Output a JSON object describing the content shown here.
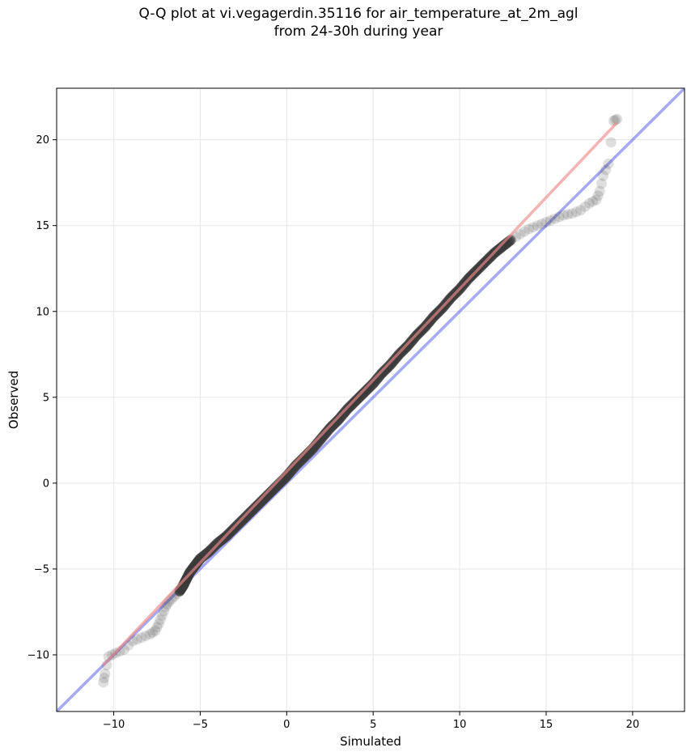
{
  "chart_data": {
    "type": "scatter",
    "title": "Q-Q plot at vi.vegagerdin.35116 for air_temperature_at_2m_agl\nfrom 24-30h during year",
    "xlabel": "Simulated",
    "ylabel": "Observed",
    "xlim": [
      -13.3,
      23.0
    ],
    "ylim": [
      -13.3,
      23.0
    ],
    "xticks": [
      -10,
      -5,
      0,
      5,
      10,
      15,
      20
    ],
    "yticks": [
      -10,
      -5,
      0,
      5,
      10,
      15,
      20
    ],
    "xtick_labels": [
      "−10",
      "−5",
      "0",
      "5",
      "10",
      "15",
      "20"
    ],
    "ytick_labels": [
      "−10",
      "−5",
      "0",
      "5",
      "10",
      "15",
      "20"
    ],
    "grid": true,
    "identity_line_color": "#5b62ee",
    "fit_line_color": "#f08a8a",
    "fit_line": {
      "x": [
        -10.6,
        19.1
      ],
      "y": [
        -10.6,
        21.0
      ]
    },
    "point_color": "#3a3a3a",
    "points": [
      {
        "x": -10.6,
        "y": -11.6
      },
      {
        "x": -10.5,
        "y": -11.1
      },
      {
        "x": -10.3,
        "y": -10.1
      },
      {
        "x": -9.9,
        "y": -9.9
      },
      {
        "x": -9.4,
        "y": -9.7
      },
      {
        "x": -8.9,
        "y": -9.2
      },
      {
        "x": -8.4,
        "y": -9.0
      },
      {
        "x": -7.9,
        "y": -8.8
      },
      {
        "x": -7.6,
        "y": -8.6
      },
      {
        "x": -7.4,
        "y": -8.2
      },
      {
        "x": -7.2,
        "y": -7.7
      },
      {
        "x": -7.0,
        "y": -7.2
      },
      {
        "x": -6.8,
        "y": -6.9
      },
      {
        "x": -6.5,
        "y": -6.6
      },
      {
        "x": -6.2,
        "y": -6.3
      },
      {
        "x": -6.0,
        "y": -6.0
      },
      {
        "x": -5.8,
        "y": -5.6
      },
      {
        "x": -5.6,
        "y": -5.2
      },
      {
        "x": -5.3,
        "y": -4.8
      },
      {
        "x": -5.0,
        "y": -4.4
      },
      {
        "x": -4.5,
        "y": -4.0
      },
      {
        "x": -4.0,
        "y": -3.5
      },
      {
        "x": -3.5,
        "y": -3.1
      },
      {
        "x": -3.0,
        "y": -2.6
      },
      {
        "x": -2.5,
        "y": -2.1
      },
      {
        "x": -2.0,
        "y": -1.6
      },
      {
        "x": -1.5,
        "y": -1.1
      },
      {
        "x": -1.0,
        "y": -0.6
      },
      {
        "x": -0.5,
        "y": -0.1
      },
      {
        "x": 0.0,
        "y": 0.4
      },
      {
        "x": 0.5,
        "y": 1.0
      },
      {
        "x": 1.0,
        "y": 1.5
      },
      {
        "x": 1.5,
        "y": 2.0
      },
      {
        "x": 2.0,
        "y": 2.6
      },
      {
        "x": 2.5,
        "y": 3.2
      },
      {
        "x": 3.0,
        "y": 3.7
      },
      {
        "x": 3.5,
        "y": 4.3
      },
      {
        "x": 4.0,
        "y": 4.8
      },
      {
        "x": 4.5,
        "y": 5.3
      },
      {
        "x": 5.0,
        "y": 5.8
      },
      {
        "x": 5.5,
        "y": 6.4
      },
      {
        "x": 6.0,
        "y": 6.9
      },
      {
        "x": 6.5,
        "y": 7.5
      },
      {
        "x": 7.0,
        "y": 8.0
      },
      {
        "x": 7.5,
        "y": 8.6
      },
      {
        "x": 8.0,
        "y": 9.1
      },
      {
        "x": 8.5,
        "y": 9.7
      },
      {
        "x": 9.0,
        "y": 10.2
      },
      {
        "x": 9.5,
        "y": 10.8
      },
      {
        "x": 10.0,
        "y": 11.3
      },
      {
        "x": 10.5,
        "y": 11.9
      },
      {
        "x": 11.0,
        "y": 12.4
      },
      {
        "x": 11.5,
        "y": 12.9
      },
      {
        "x": 12.0,
        "y": 13.4
      },
      {
        "x": 12.5,
        "y": 13.8
      },
      {
        "x": 13.0,
        "y": 14.2
      },
      {
        "x": 13.5,
        "y": 14.5
      },
      {
        "x": 14.0,
        "y": 14.8
      },
      {
        "x": 14.5,
        "y": 15.0
      },
      {
        "x": 15.0,
        "y": 15.2
      },
      {
        "x": 15.5,
        "y": 15.4
      },
      {
        "x": 16.0,
        "y": 15.6
      },
      {
        "x": 16.5,
        "y": 15.7
      },
      {
        "x": 17.0,
        "y": 15.9
      },
      {
        "x": 17.5,
        "y": 16.3
      },
      {
        "x": 17.9,
        "y": 16.5
      },
      {
        "x": 18.1,
        "y": 17.0
      },
      {
        "x": 18.3,
        "y": 17.9
      },
      {
        "x": 18.6,
        "y": 18.6
      },
      {
        "x": 18.9,
        "y": 21.1
      },
      {
        "x": 19.1,
        "y": 21.2
      }
    ]
  }
}
